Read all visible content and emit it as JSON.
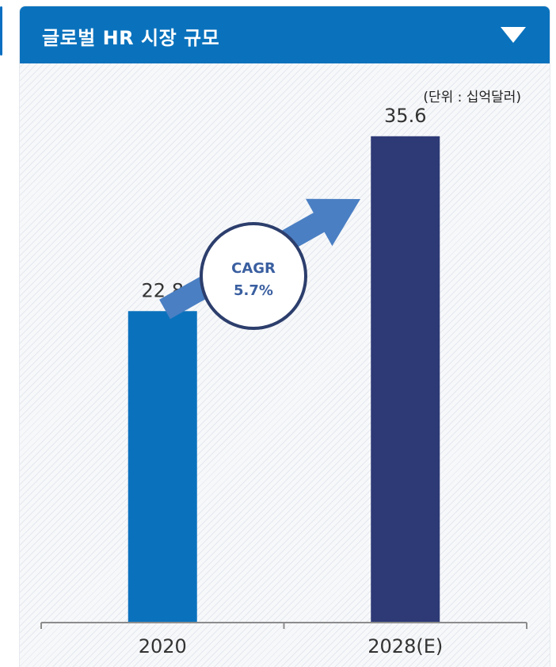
{
  "panel": {
    "title": "글로벌 HR 시장 규모",
    "unit": "(단위 : 십억달러)",
    "toggle_icon": "triangle-down-icon"
  },
  "annotation": {
    "line1": "CAGR",
    "line2": "5.7%"
  },
  "colors": {
    "header": "#0a72bd",
    "bar_2020": "#0a72bd",
    "bar_2028": "#2e3a76",
    "arrow": "#4a7fc3",
    "circle_border": "#2c3e6c"
  },
  "chart_data": {
    "type": "bar",
    "title": "글로벌 HR 시장 규모",
    "categories": [
      "2020",
      "2028(E)"
    ],
    "values": [
      22.8,
      35.6
    ],
    "value_labels": [
      "22.8",
      "35.6"
    ],
    "ylabel": "",
    "xlabel": "",
    "ylim": [
      0,
      40
    ],
    "grid": false,
    "legend": "none",
    "annotations": [
      "CAGR",
      "5.7%"
    ]
  }
}
